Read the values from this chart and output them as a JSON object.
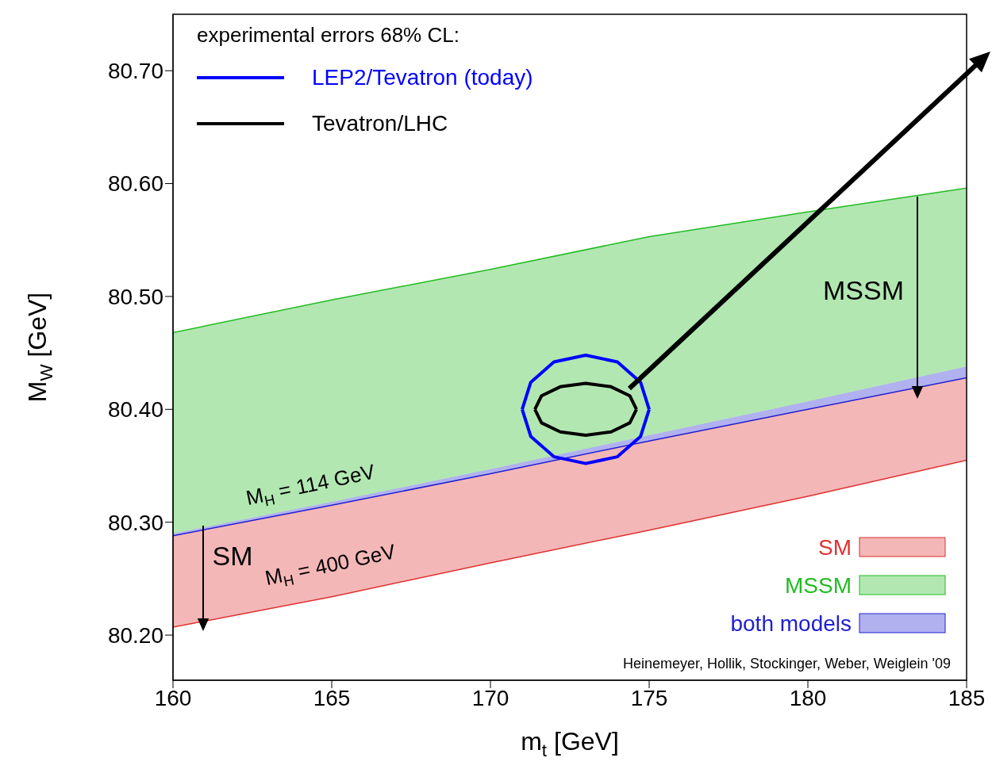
{
  "chart_data": {
    "type": "line",
    "xlabel": "m$_{t}$ [GeV]",
    "ylabel": "M$_{W}$ [GeV]",
    "legend_title": "experimental errors 68% CL:",
    "legend": "bottom right",
    "xlim": [
      160,
      185
    ],
    "xticks": [
      160,
      165,
      170,
      175,
      180,
      185
    ],
    "ylim": [
      80.16,
      80.75
    ],
    "yticks": [
      {
        "value": 80.2,
        "label": "80.20"
      },
      {
        "value": 80.3,
        "label": "80.30"
      },
      {
        "value": 80.4,
        "label": "80.40"
      },
      {
        "value": 80.5,
        "label": "80.50"
      },
      {
        "value": 80.6,
        "label": "80.60"
      },
      {
        "value": 80.7,
        "label": "80.70"
      }
    ],
    "x": [
      160,
      165,
      170,
      175,
      180,
      185
    ],
    "series": [
      {
        "name": "SM",
        "color": "#e03030",
        "values": [
          80.207,
          80.234,
          80.264,
          80.293,
          80.323,
          80.355
        ],
        "lower": [
          80.207,
          80.234,
          80.264,
          80.293,
          80.323,
          80.355
        ],
        "upper": [
          80.288,
          80.315,
          80.343,
          80.372,
          80.4,
          80.428
        ]
      },
      {
        "name": "MSSM",
        "color": "#22bb22",
        "values": [
          80.468,
          80.497,
          80.524,
          80.553,
          80.575,
          80.596
        ],
        "lower": [
          80.29,
          80.318,
          80.347,
          80.377,
          80.407,
          80.438
        ],
        "upper": [
          80.468,
          80.497,
          80.524,
          80.553,
          80.575,
          80.596
        ]
      },
      {
        "name": "both models",
        "color": "#2020d0",
        "values": [
          80.288,
          80.315,
          80.343,
          80.372,
          80.4,
          80.428
        ],
        "lower": [
          80.288,
          80.315,
          80.343,
          80.372,
          80.4,
          80.428
        ],
        "upper": [
          80.29,
          80.318,
          80.347,
          80.377,
          80.407,
          80.438
        ]
      },
      {
        "name": "LEP2/Tevatron (today)",
        "color": "#0000ff",
        "x": [
          171,
          171.27,
          172,
          173,
          174,
          174.73,
          175
        ],
        "values": [
          80.4,
          80.424,
          80.442,
          80.448,
          80.442,
          80.424,
          80.4
        ]
      },
      {
        "color": "#0000ff",
        "x": [
          171,
          171.27,
          172,
          173,
          174,
          174.73,
          175
        ],
        "values": [
          80.4,
          80.376,
          80.358,
          80.352,
          80.358,
          80.376,
          80.4
        ]
      },
      {
        "name": "Tevatron/LHC",
        "color": "#000000",
        "x": [
          171.4,
          171.61,
          172.2,
          173,
          173.8,
          174.39,
          174.6
        ],
        "values": [
          80.4,
          80.412,
          80.42,
          80.423,
          80.42,
          80.412,
          80.4
        ]
      },
      {
        "color": "#000000",
        "x": [
          171.4,
          171.61,
          172.2,
          173,
          173.8,
          174.39,
          174.6
        ],
        "values": [
          80.4,
          80.388,
          80.38,
          80.377,
          80.38,
          80.388,
          80.4
        ]
      }
    ],
    "annotations": [
      "MSSM",
      "SM",
      "M$_{H}$ = 114 GeV",
      "M$_{H}$ = 400 GeV",
      "Heinemeyer, Hollik, Stockinger, Weber, Weiglein '09"
    ]
  }
}
